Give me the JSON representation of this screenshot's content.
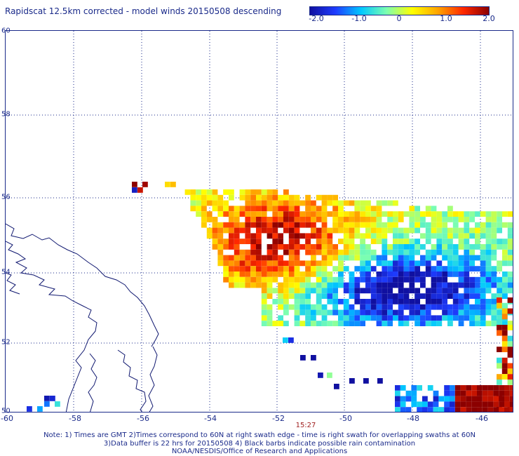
{
  "header": {
    "title": "Rapidscat 12.5km corrected - model winds 20150508 descending"
  },
  "colorbar": {
    "ticks": [
      "-2.0",
      "-1.0",
      "0",
      "1.0",
      "2.0"
    ],
    "range": [
      -2.0,
      2.0
    ],
    "colors": [
      "#1010a0",
      "#1e3cff",
      "#00c8ff",
      "#7dffb0",
      "#ffff00",
      "#ffa500",
      "#ff2800",
      "#8b0000"
    ]
  },
  "map": {
    "lat_labels": [
      "60",
      "58",
      "56",
      "54",
      "52",
      "50"
    ],
    "lon_labels": [
      "-60",
      "-58",
      "-56",
      "-54",
      "-52",
      "-50",
      "-48",
      "-46"
    ],
    "lon_range": [
      -60,
      -45.2
    ],
    "lat_range": [
      50,
      60
    ],
    "coastline_color": "#101870",
    "grid": true,
    "swath_time": "15:27"
  },
  "footer": {
    "note_line1": "Note: 1) Times are GMT 2)Times correspond to 60N at right swath edge - time is right swath for overlapping swaths at 60N",
    "note_line2": "3)Data buffer is 22 hrs for 20150508 4) Black barbs indicate possible rain contamination",
    "note_line3": "NOAA/NESDIS/Office of Research and Applications"
  }
}
